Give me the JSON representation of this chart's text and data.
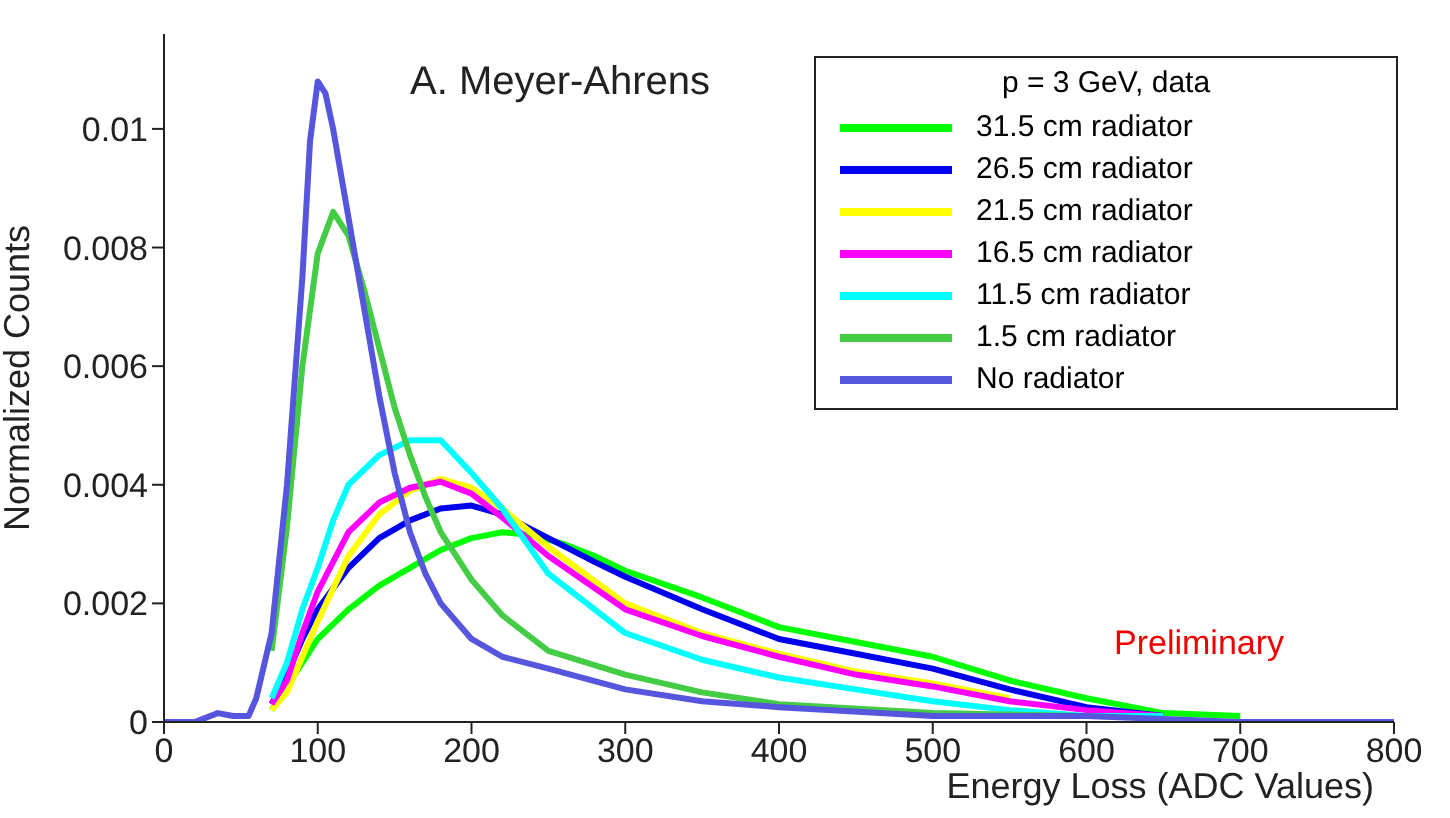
{
  "chart_data": {
    "type": "line",
    "xlabel": "Energy Loss (ADC Values)",
    "ylabel": "Normalized Counts",
    "legend_title": "p = 3 GeV, data",
    "legend": "top right",
    "grid": false,
    "marker": "none",
    "line_style": "solid",
    "xlim": [
      0,
      800
    ],
    "xticks": [
      0,
      100,
      200,
      300,
      400,
      500,
      600,
      700,
      800
    ],
    "ylim": [
      0,
      0.0116
    ],
    "yticks": [
      0,
      0.002,
      0.004,
      0.006,
      0.008,
      0.01
    ],
    "annotations": [
      "A. Meyer-Ahrens",
      "Preliminary"
    ],
    "series": [
      {
        "name": "31.5 cm radiator",
        "color": "#00ff00",
        "x": [
          70,
          80,
          90,
          100,
          120,
          140,
          160,
          180,
          200,
          220,
          240,
          260,
          280,
          300,
          350,
          400,
          450,
          500,
          550,
          600,
          650,
          700
        ],
        "values": [
          0.0002,
          0.0006,
          0.001,
          0.0014,
          0.0019,
          0.0023,
          0.0026,
          0.0029,
          0.0031,
          0.0032,
          0.00315,
          0.003,
          0.0028,
          0.00255,
          0.0021,
          0.0016,
          0.00135,
          0.0011,
          0.0007,
          0.0004,
          0.00015,
          0.0001
        ]
      },
      {
        "name": "26.5 cm radiator",
        "color": "#0000ee",
        "x": [
          70,
          80,
          90,
          100,
          120,
          140,
          160,
          180,
          200,
          220,
          250,
          280,
          300,
          350,
          400,
          450,
          500,
          550,
          600,
          650
        ],
        "values": [
          0.0003,
          0.0008,
          0.0014,
          0.0019,
          0.0026,
          0.0031,
          0.0034,
          0.0036,
          0.00365,
          0.0035,
          0.0031,
          0.0027,
          0.00245,
          0.0019,
          0.0014,
          0.00115,
          0.0009,
          0.00055,
          0.00025,
          0.0001
        ]
      },
      {
        "name": "21.5 cm radiator",
        "color": "#ffff00",
        "x": [
          70,
          80,
          90,
          100,
          120,
          140,
          160,
          180,
          200,
          220,
          250,
          300,
          350,
          400,
          450,
          500,
          550
        ],
        "values": [
          0.0002,
          0.0005,
          0.0011,
          0.0017,
          0.0028,
          0.0035,
          0.0039,
          0.0041,
          0.00395,
          0.0036,
          0.00295,
          0.002,
          0.0015,
          0.00115,
          0.00085,
          0.00065,
          0.0004
        ]
      },
      {
        "name": "16.5 cm radiator",
        "color": "#ff00ff",
        "x": [
          70,
          80,
          90,
          100,
          120,
          140,
          160,
          180,
          200,
          220,
          250,
          300,
          350,
          400,
          450,
          500,
          550,
          600,
          650
        ],
        "values": [
          0.0003,
          0.0007,
          0.0015,
          0.0022,
          0.0032,
          0.0037,
          0.00395,
          0.00405,
          0.00385,
          0.00345,
          0.0028,
          0.0019,
          0.00145,
          0.0011,
          0.0008,
          0.0006,
          0.00035,
          0.0002,
          0.0001
        ]
      },
      {
        "name": "11.5 cm radiator",
        "color": "#00ffff",
        "x": [
          70,
          80,
          90,
          100,
          110,
          120,
          140,
          160,
          180,
          200,
          220,
          250,
          300,
          350,
          400,
          450,
          500,
          550,
          600,
          650
        ],
        "values": [
          0.0004,
          0.001,
          0.0019,
          0.0026,
          0.0034,
          0.004,
          0.0045,
          0.00475,
          0.00475,
          0.0042,
          0.0036,
          0.0025,
          0.0015,
          0.00105,
          0.00075,
          0.00055,
          0.00035,
          0.0002,
          0.0001,
          0.0001
        ]
      },
      {
        "name": "1.5 cm radiator",
        "color": "#44cc44",
        "x": [
          70,
          80,
          90,
          100,
          110,
          120,
          130,
          140,
          150,
          160,
          170,
          180,
          200,
          220,
          250,
          300,
          350,
          400,
          500,
          600
        ],
        "values": [
          0.0012,
          0.0033,
          0.006,
          0.0079,
          0.0086,
          0.0082,
          0.0073,
          0.0063,
          0.0053,
          0.0045,
          0.0038,
          0.0032,
          0.0024,
          0.0018,
          0.0012,
          0.0008,
          0.0005,
          0.0003,
          0.00015,
          0.0001
        ]
      },
      {
        "name": "No radiator",
        "color": "#5555dd",
        "x": [
          0,
          20,
          35,
          45,
          55,
          60,
          70,
          80,
          90,
          95,
          100,
          105,
          110,
          120,
          130,
          140,
          150,
          160,
          170,
          180,
          200,
          220,
          250,
          300,
          350,
          400,
          500,
          600,
          700,
          800
        ],
        "values": [
          0,
          0,
          0.00015,
          0.0001,
          0.0001,
          0.0004,
          0.0015,
          0.004,
          0.0075,
          0.0098,
          0.0108,
          0.0106,
          0.01,
          0.0085,
          0.007,
          0.0055,
          0.0042,
          0.0032,
          0.0025,
          0.002,
          0.0014,
          0.0011,
          0.0009,
          0.00055,
          0.00035,
          0.00025,
          0.0001,
          0.0001,
          0,
          0
        ]
      }
    ]
  }
}
